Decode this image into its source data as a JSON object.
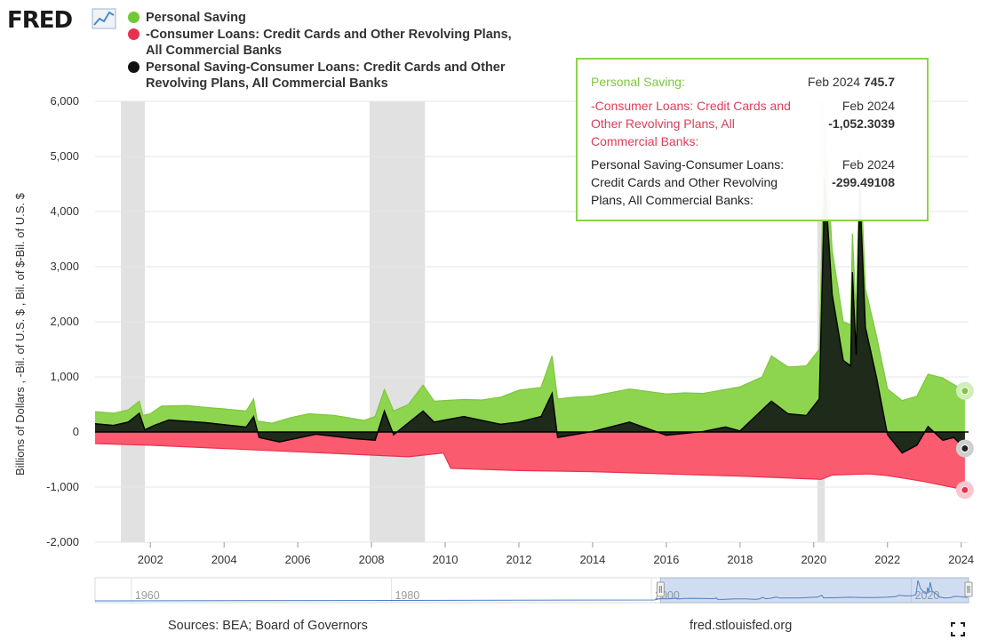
{
  "header": {
    "logo_text": "FRED"
  },
  "legend": [
    {
      "label": "Personal Saving",
      "color": "#71c837"
    },
    {
      "label": "-Consumer Loans: Credit Cards and Other Revolving Plans, All Commercial Banks",
      "color": "#e8324d"
    },
    {
      "label": "Personal Saving-Consumer Loans: Credit Cards and Other Revolving Plans, All Commercial Banks",
      "color": "#111111"
    }
  ],
  "tooltip": {
    "rows": [
      {
        "name": "Personal Saving:",
        "date": "Feb 2024",
        "value": "745.7",
        "color": "#7ec63f"
      },
      {
        "name": "-Consumer Loans: Credit Cards and Other Revolving Plans, All Commercial Banks:",
        "date": "Feb 2024",
        "value": "-1,052.3039",
        "color": "#d9405a"
      },
      {
        "name": "Personal Saving-Consumer Loans: Credit Cards and Other Revolving Plans, All Commercial Banks:",
        "date": "Feb 2024",
        "value": "-299.49108",
        "color": "#222222"
      }
    ]
  },
  "chart_data": {
    "type": "area",
    "title": "",
    "xlabel": "",
    "ylabel": "Billions of Dollars , -Bil. of U.S. $ , Bil. of $-Bil. of U.S. $",
    "xlim": [
      2000.5,
      2024.2
    ],
    "ylim": [
      -2000,
      6000
    ],
    "yticks": [
      6000,
      5000,
      4000,
      3000,
      2000,
      1000,
      0,
      -1000,
      -2000
    ],
    "ytick_labels": [
      "6,000",
      "5,000",
      "4,000",
      "3,000",
      "2,000",
      "1,000",
      "0",
      "-1,000",
      "-2,000"
    ],
    "xticks": [
      2002,
      2004,
      2006,
      2008,
      2010,
      2012,
      2014,
      2016,
      2018,
      2020,
      2022,
      2024
    ],
    "xtick_labels": [
      "2002",
      "2004",
      "2006",
      "2008",
      "2010",
      "2012",
      "2014",
      "2016",
      "2018",
      "2020",
      "2022",
      "2024"
    ],
    "grid": true,
    "recessions": [
      [
        2001.2,
        2001.85
      ],
      [
        2007.95,
        2009.45
      ],
      [
        2020.1,
        2020.3
      ]
    ],
    "series": [
      {
        "name": "Personal Saving",
        "color": "#8dd54e",
        "points": [
          [
            2000.5,
            370
          ],
          [
            2001,
            340
          ],
          [
            2001.4,
            400
          ],
          [
            2001.7,
            560
          ],
          [
            2001.8,
            300
          ],
          [
            2002,
            330
          ],
          [
            2002.3,
            470
          ],
          [
            2003,
            480
          ],
          [
            2003.6,
            440
          ],
          [
            2004,
            420
          ],
          [
            2004.6,
            380
          ],
          [
            2004.8,
            600
          ],
          [
            2004.9,
            200
          ],
          [
            2005.3,
            160
          ],
          [
            2005.8,
            260
          ],
          [
            2006.3,
            330
          ],
          [
            2007,
            300
          ],
          [
            2007.8,
            210
          ],
          [
            2008.1,
            280
          ],
          [
            2008.35,
            770
          ],
          [
            2008.6,
            380
          ],
          [
            2009,
            500
          ],
          [
            2009.4,
            850
          ],
          [
            2009.7,
            560
          ],
          [
            2010.5,
            590
          ],
          [
            2011,
            580
          ],
          [
            2011.5,
            630
          ],
          [
            2012,
            760
          ],
          [
            2012.6,
            810
          ],
          [
            2012.9,
            1380
          ],
          [
            2013.05,
            600
          ],
          [
            2013.5,
            630
          ],
          [
            2014,
            650
          ],
          [
            2015,
            780
          ],
          [
            2016,
            690
          ],
          [
            2016.5,
            710
          ],
          [
            2017,
            700
          ],
          [
            2018,
            820
          ],
          [
            2018.6,
            1000
          ],
          [
            2018.85,
            1380
          ],
          [
            2019.3,
            1180
          ],
          [
            2019.8,
            1200
          ],
          [
            2020.15,
            1500
          ],
          [
            2020.3,
            5600
          ],
          [
            2020.5,
            3300
          ],
          [
            2020.8,
            2000
          ],
          [
            2021,
            1950
          ],
          [
            2021.05,
            3600
          ],
          [
            2021.15,
            2100
          ],
          [
            2021.25,
            5100
          ],
          [
            2021.4,
            2600
          ],
          [
            2021.7,
            1750
          ],
          [
            2022,
            780
          ],
          [
            2022.4,
            570
          ],
          [
            2022.8,
            650
          ],
          [
            2023.1,
            1050
          ],
          [
            2023.5,
            980
          ],
          [
            2023.8,
            860
          ],
          [
            2024.1,
            746
          ]
        ]
      },
      {
        "name": "-Consumer Loans: Credit Cards and Other Revolving Plans, All Commercial Banks",
        "color": "#fb5b6f",
        "points": [
          [
            2000.5,
            -210
          ],
          [
            2002,
            -240
          ],
          [
            2004,
            -300
          ],
          [
            2006,
            -360
          ],
          [
            2008,
            -420
          ],
          [
            2009,
            -450
          ],
          [
            2009.95,
            -380
          ],
          [
            2010.15,
            -660
          ],
          [
            2012,
            -700
          ],
          [
            2014,
            -720
          ],
          [
            2016,
            -760
          ],
          [
            2018,
            -800
          ],
          [
            2019.5,
            -840
          ],
          [
            2020.2,
            -860
          ],
          [
            2020.5,
            -780
          ],
          [
            2021.5,
            -760
          ],
          [
            2022,
            -790
          ],
          [
            2023,
            -900
          ],
          [
            2024.1,
            -1052
          ]
        ]
      },
      {
        "name": "Personal Saving-Consumer Loans: Credit Cards and Other Revolving Plans, All Commercial Banks",
        "color": "#1e2a1a",
        "points": [
          [
            2000.5,
            150
          ],
          [
            2001,
            120
          ],
          [
            2001.4,
            180
          ],
          [
            2001.7,
            340
          ],
          [
            2001.85,
            40
          ],
          [
            2002.1,
            120
          ],
          [
            2002.5,
            220
          ],
          [
            2003.5,
            170
          ],
          [
            2004.6,
            90
          ],
          [
            2004.8,
            280
          ],
          [
            2004.95,
            -100
          ],
          [
            2005.5,
            -180
          ],
          [
            2006.5,
            -40
          ],
          [
            2007.5,
            -120
          ],
          [
            2008.1,
            -150
          ],
          [
            2008.35,
            380
          ],
          [
            2008.6,
            -50
          ],
          [
            2009.4,
            380
          ],
          [
            2009.7,
            180
          ],
          [
            2010.5,
            280
          ],
          [
            2011.5,
            140
          ],
          [
            2012,
            180
          ],
          [
            2012.6,
            280
          ],
          [
            2012.9,
            700
          ],
          [
            2013.05,
            -100
          ],
          [
            2014,
            10
          ],
          [
            2015,
            180
          ],
          [
            2016,
            -60
          ],
          [
            2017,
            10
          ],
          [
            2017.6,
            90
          ],
          [
            2018,
            20
          ],
          [
            2018.85,
            560
          ],
          [
            2019.3,
            330
          ],
          [
            2019.8,
            300
          ],
          [
            2020.15,
            600
          ],
          [
            2020.3,
            4600
          ],
          [
            2020.5,
            2500
          ],
          [
            2020.8,
            1300
          ],
          [
            2021,
            1200
          ],
          [
            2021.05,
            2900
          ],
          [
            2021.15,
            1400
          ],
          [
            2021.25,
            4400
          ],
          [
            2021.4,
            1900
          ],
          [
            2021.7,
            1000
          ],
          [
            2022,
            -50
          ],
          [
            2022.4,
            -380
          ],
          [
            2022.8,
            -240
          ],
          [
            2023.1,
            100
          ],
          [
            2023.5,
            -150
          ],
          [
            2023.8,
            -100
          ],
          [
            2024.1,
            -299
          ]
        ]
      }
    ]
  },
  "navigator": {
    "labels": [
      "1960",
      "1980",
      "2000",
      "2020"
    ],
    "xlim": [
      1957,
      2024.2
    ],
    "selection": [
      2000.5,
      2024.2
    ]
  },
  "footer": {
    "sources": "Sources: BEA; Board of Governors",
    "site": "fred.stlouisfed.org"
  }
}
